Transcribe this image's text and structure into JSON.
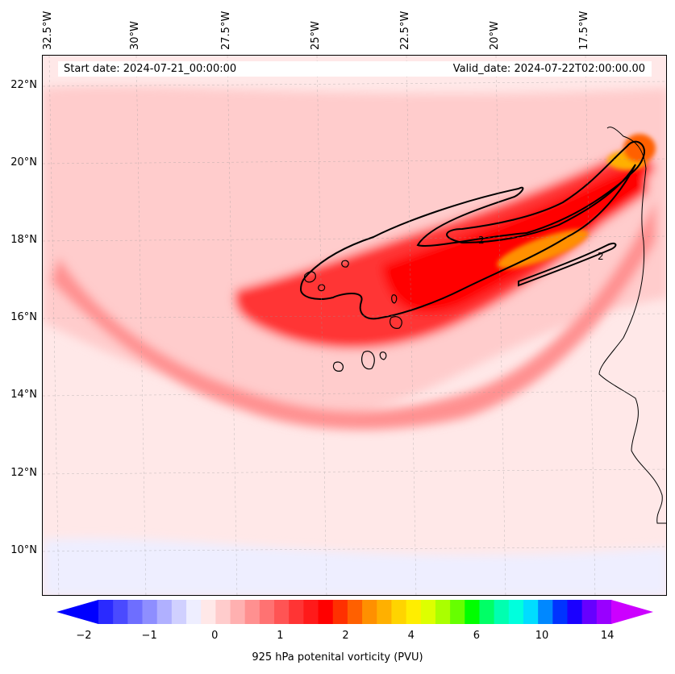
{
  "header": {
    "start_date": "Start date: 2024-07-21_00:00:00",
    "valid_date": "Valid_date: 2024-07-22T02:00:00.00"
  },
  "lon_labels": [
    {
      "value": -32.5,
      "text": "32.5°W"
    },
    {
      "value": -30,
      "text": "30°W"
    },
    {
      "value": -27.5,
      "text": "27.5°W"
    },
    {
      "value": -25,
      "text": "25°W"
    },
    {
      "value": -22.5,
      "text": "22.5°W"
    },
    {
      "value": -20,
      "text": "20°W"
    },
    {
      "value": -17.5,
      "text": "17.5°W"
    }
  ],
  "lat_labels": [
    {
      "value": 22,
      "text": "22°N"
    },
    {
      "value": 20,
      "text": "20°N"
    },
    {
      "value": 18,
      "text": "18°N"
    },
    {
      "value": 16,
      "text": "16°N"
    },
    {
      "value": 14,
      "text": "14°N"
    },
    {
      "value": 12,
      "text": "12°N"
    },
    {
      "value": 10,
      "text": "10°N"
    }
  ],
  "contour_label": "2",
  "colorbar": {
    "label": "925 hPa potenital vorticity (PVU)",
    "colors": [
      "#0000ff",
      "#2a2aff",
      "#4a4aff",
      "#6e6eff",
      "#8e8eff",
      "#b0b0ff",
      "#d0d0ff",
      "#eeeeff",
      "#ffe8e8",
      "#ffcccc",
      "#ffb0b0",
      "#ff9090",
      "#ff7272",
      "#ff5454",
      "#ff3434",
      "#ff1a1a",
      "#ff0000",
      "#ff3000",
      "#ff6000",
      "#ff9000",
      "#ffb000",
      "#ffd400",
      "#ffee00",
      "#ddff00",
      "#aaff00",
      "#66ff00",
      "#00ff00",
      "#00ff66",
      "#00ffb0",
      "#00ffdd",
      "#00ddff",
      "#0088ff",
      "#0033ff",
      "#1a00ff",
      "#6600ff",
      "#9900ff",
      "#cc00ff"
    ],
    "ticks": [
      {
        "frac": 0.0,
        "text": "−2"
      },
      {
        "frac": 0.111,
        "text": "−1"
      },
      {
        "frac": 0.222,
        "text": "0"
      },
      {
        "frac": 0.333,
        "text": "1"
      },
      {
        "frac": 0.444,
        "text": "2"
      },
      {
        "frac": 0.555,
        "text": "4"
      },
      {
        "frac": 0.666,
        "text": "6"
      },
      {
        "frac": 0.777,
        "text": "10"
      },
      {
        "frac": 0.888,
        "text": "14"
      }
    ]
  }
}
